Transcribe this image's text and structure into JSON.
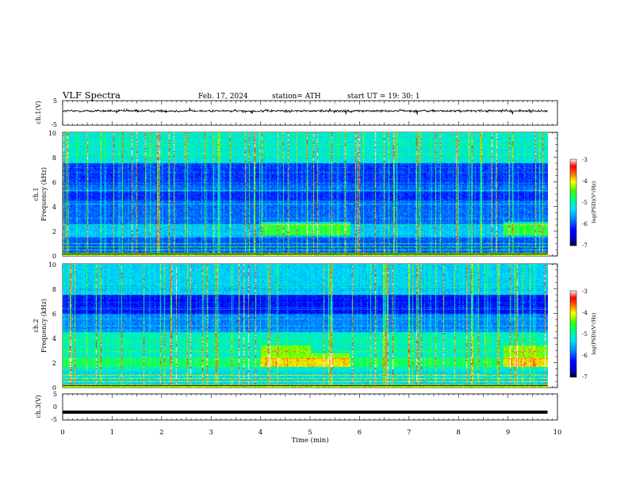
{
  "header": {
    "title": "VLF  Spectra",
    "date": "Feb. 17, 2024",
    "station": "station= ATH",
    "start": "start  UT  =    19: 30: 1"
  },
  "chart_data": [
    {
      "type": "line",
      "panel": "ch1-waveform",
      "ylabel": "ch.1(V)",
      "ylim": [
        -5,
        5
      ],
      "yticks": [
        "5",
        "-5"
      ],
      "xlim": [
        0,
        10
      ],
      "series": [
        {
          "color": "#000000",
          "trace": "noisy waveform around ~0.8 V, spanning 0 to 9.8 min"
        }
      ]
    },
    {
      "type": "heatmap",
      "panel": "ch1-spectrogram",
      "ylabel_top": "ch.1",
      "ylabel": "Frequency  (kHz)",
      "ylim": [
        0,
        10
      ],
      "yticks": [
        "0",
        "2",
        "4",
        "6",
        "8",
        "10"
      ],
      "xlim": [
        0,
        10
      ],
      "data_end_min": 9.8,
      "colorbar": {
        "label": "log(PSD)(V²/Hz)",
        "range": [
          -7,
          -3
        ],
        "ticks": [
          "-3",
          "-4",
          "-5",
          "-6",
          "-7"
        ]
      }
    },
    {
      "type": "heatmap",
      "panel": "ch2-spectrogram",
      "ylabel_top": "ch.2",
      "ylabel": "Frequency  (kHz)",
      "ylim": [
        0,
        10
      ],
      "yticks": [
        "0",
        "2",
        "4",
        "6",
        "8",
        "10"
      ],
      "xlim": [
        0,
        10
      ],
      "data_end_min": 9.8,
      "colorbar": {
        "label": "log(PSD)(V²/Hz)",
        "range": [
          -7,
          -3
        ],
        "ticks": [
          "-3",
          "-4",
          "-5",
          "-6",
          "-7"
        ]
      }
    },
    {
      "type": "line",
      "panel": "ch3-waveform",
      "ylabel": "ch.3(V)",
      "ylim": [
        -5,
        5
      ],
      "yticks": [
        "5",
        "0",
        "-5"
      ],
      "xlim": [
        0,
        10
      ],
      "xlabel": "Time  (min)",
      "xticks": [
        "0",
        "1",
        "2",
        "3",
        "4",
        "5",
        "6",
        "7",
        "8",
        "9",
        "10"
      ],
      "series": [
        {
          "color": "#000000",
          "trace": "flat thick line near -2 V, spanning 0 to 9.8 min"
        }
      ]
    }
  ],
  "colors": {
    "colormap": [
      "#000000",
      "#0000ff",
      "#0080ff",
      "#00c8ff",
      "#00ffc0",
      "#00ff40",
      "#c0ff00",
      "#ffff00",
      "#ff8000",
      "#ff0000",
      "#ffffff"
    ],
    "axis": "#000000"
  }
}
